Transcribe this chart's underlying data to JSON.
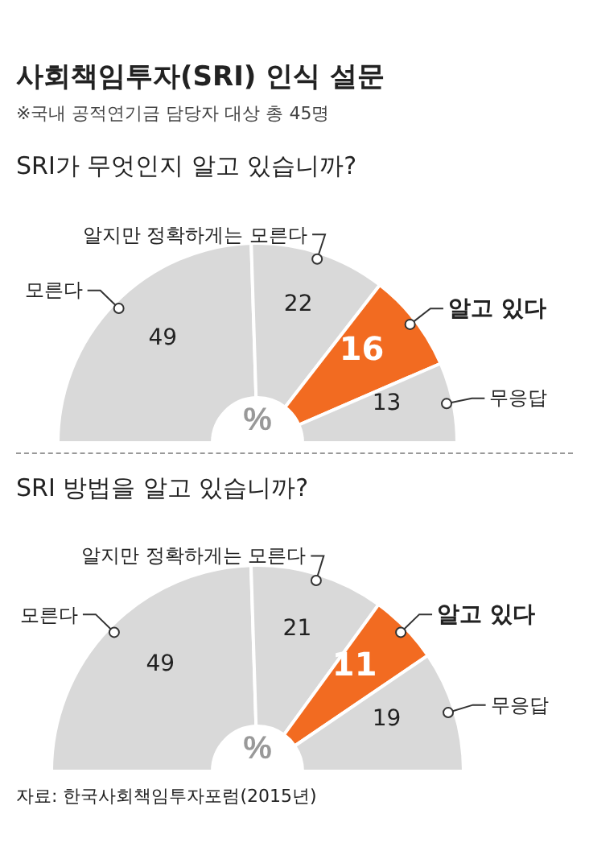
{
  "chart_data": [
    {
      "type": "donut",
      "title": "사회책임투자(SRI) 인식 설문",
      "subtitle": "※국내 공적연기금 담당자 대상 총 45명",
      "annotations": [
        "SRI가 무엇인지 알고 있습니까?"
      ],
      "ylabel": "%",
      "categories": [
        "모른다",
        "알지만 정확하게는 모른다",
        "알고 있다",
        "무응답"
      ],
      "values": [
        49,
        22,
        16,
        13
      ],
      "colors": [
        "#d9d9d9",
        "#d9d9d9",
        "#f26b21",
        "#d9d9d9"
      ],
      "data_labels": true
    },
    {
      "type": "donut",
      "title": "SRI 방법을 알고 있습니까?",
      "annotations": [
        "자료: 한국사회책임투자포럼(2015년)"
      ],
      "ylabel": "%",
      "categories": [
        "모른다",
        "알지만 정확하게는 모른다",
        "알고 있다",
        "무응답"
      ],
      "values": [
        49,
        21,
        11,
        19
      ],
      "colors": [
        "#d9d9d9",
        "#d9d9d9",
        "#f26b21",
        "#d9d9d9"
      ],
      "data_labels": true
    }
  ]
}
